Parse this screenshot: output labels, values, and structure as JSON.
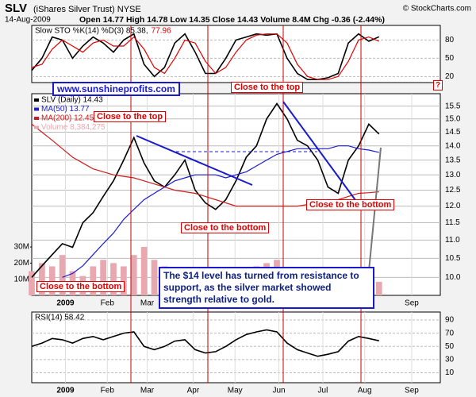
{
  "header": {
    "symbol": "SLV",
    "name": "(iShares Silver Trust) NYSE",
    "date": "14-Aug-2009",
    "quote": "Open 14.77 High 14.78 Low 14.35 Close 14.43 Volume 8.4M Chg -0.36 (-2.44%)",
    "source": "© StockCharts.com",
    "help": "?"
  },
  "annotations": {
    "website": "www.sunshineprofits.com",
    "top": "Close to the top",
    "bottom": "Close to the bottom",
    "note": "The $14 level has turned from resistance to support, as the silver market showed strength relative to gold."
  },
  "chart_data": [
    {
      "type": "line",
      "title": "Slow STO %K(14) %D(3) 85.38,",
      "title_extra": "77.96",
      "x": [
        0,
        1,
        2,
        3,
        4,
        5,
        6,
        7,
        8,
        9,
        10,
        11,
        12,
        13,
        14,
        15,
        16,
        17,
        18,
        19,
        20,
        21,
        22,
        23,
        24,
        25,
        26,
        27,
        28,
        29,
        30,
        31,
        32,
        33,
        34
      ],
      "xlim": [
        0,
        40
      ],
      "ylim": [
        10,
        104
      ],
      "yticks": [
        20,
        50,
        80
      ],
      "grid": true,
      "series": [
        {
          "color": "#000000",
          "values": [
            30,
            50,
            85,
            80,
            50,
            70,
            85,
            75,
            60,
            80,
            90,
            40,
            20,
            35,
            75,
            90,
            60,
            25,
            25,
            50,
            80,
            85,
            90,
            88,
            90,
            50,
            25,
            15,
            15,
            18,
            25,
            75,
            90,
            78,
            85.38
          ]
        },
        {
          "color": "#dd0000",
          "values": [
            35,
            40,
            65,
            80,
            70,
            60,
            75,
            80,
            70,
            70,
            85,
            65,
            35,
            25,
            50,
            80,
            75,
            45,
            25,
            35,
            60,
            80,
            88,
            90,
            90,
            75,
            40,
            20,
            15,
            15,
            20,
            45,
            80,
            85,
            77.96
          ]
        }
      ]
    },
    {
      "type": "line",
      "log": true,
      "x": [
        0,
        1,
        2,
        3,
        4,
        5,
        6,
        7,
        8,
        9,
        10,
        11,
        12,
        13,
        14,
        15,
        16,
        17,
        18,
        19,
        20,
        21,
        22,
        23,
        24,
        25,
        26,
        27,
        28,
        29,
        30,
        31,
        32,
        33,
        34
      ],
      "xlim": [
        0,
        40
      ],
      "ylim": [
        9.55,
        16
      ],
      "yticks": [
        {
          "value": 10,
          "label": "10.0"
        },
        10.5,
        {
          "value": 11,
          "label": "11.0"
        },
        11.5,
        {
          "value": 12,
          "label": "12.0"
        },
        12.5,
        {
          "value": 13,
          "label": "13.0"
        },
        13.5,
        {
          "value": 14,
          "label": "14.0"
        },
        14.5,
        {
          "value": 15,
          "label": "15.0"
        },
        15.5
      ],
      "y2lim": [
        0,
        125000000
      ],
      "y2ticks": [
        {
          "value": 10000000,
          "label": "10M"
        },
        {
          "value": 20000000,
          "label": "20M"
        },
        {
          "value": 30000000,
          "label": "30M"
        }
      ],
      "xticks": [
        {
          "value": 3.3,
          "label": "2009"
        },
        {
          "value": 7.4,
          "label": "Feb"
        },
        {
          "value": 11.3,
          "label": "Mar"
        },
        {
          "value": 15.8,
          "label": "Apr"
        },
        {
          "value": 19.9,
          "label": "May"
        },
        {
          "value": 24.2,
          "label": "Jun"
        },
        {
          "value": 28.5,
          "label": "Jul"
        },
        {
          "value": 32.6,
          "label": "Aug"
        },
        {
          "value": 37.2,
          "label": "Sep"
        }
      ],
      "grid": true,
      "series": [
        {
          "name": "SLV (Daily) 14.43",
          "color": "#000000",
          "values": [
            10.0,
            10.3,
            10.6,
            10.9,
            10.8,
            11.5,
            11.8,
            12.3,
            12.8,
            13.5,
            14.3,
            13.4,
            12.8,
            12.6,
            13.0,
            13.5,
            12.5,
            12.1,
            11.9,
            12.2,
            12.8,
            13.6,
            14.0,
            15.0,
            15.6,
            15.0,
            14.2,
            14.0,
            13.5,
            12.6,
            12.4,
            13.5,
            14.0,
            14.8,
            14.43
          ]
        },
        {
          "name": "MA(50) 13.77",
          "color": "#1c1cd0",
          "values": [
            null,
            null,
            null,
            10.0,
            10.1,
            10.3,
            10.6,
            10.9,
            11.2,
            11.6,
            11.9,
            12.2,
            12.4,
            12.6,
            12.8,
            12.9,
            13.0,
            13.0,
            13.0,
            12.9,
            13.0,
            13.1,
            13.3,
            13.5,
            13.7,
            13.8,
            13.9,
            13.9,
            13.9,
            13.9,
            14.0,
            14.0,
            13.9,
            13.85,
            13.77
          ]
        },
        {
          "name": "MA(200) 12.45",
          "color": "#d01c1c",
          "values": [
            14.8,
            14.5,
            14.2,
            13.9,
            13.6,
            13.4,
            13.2,
            13.1,
            13.0,
            12.95,
            12.9,
            12.8,
            12.7,
            12.6,
            12.5,
            12.45,
            12.4,
            12.3,
            12.2,
            12.1,
            12.0,
            12.0,
            12.0,
            12.0,
            12.0,
            12.0,
            12.0,
            12.05,
            12.1,
            12.15,
            12.2,
            12.3,
            12.4,
            12.42,
            12.45
          ]
        },
        {
          "name": "Volume 8,384,275",
          "color": "#e8a8b0",
          "axis": "y2",
          "values": [
            15000000,
            20000000,
            18000000,
            25000000,
            15000000,
            12000000,
            18000000,
            22000000,
            20000000,
            18000000,
            25000000,
            30000000,
            22000000,
            18000000,
            12000000,
            15000000,
            10000000,
            12000000,
            14000000,
            10000000,
            12000000,
            15000000,
            18000000,
            20000000,
            22000000,
            12000000,
            10000000,
            12000000,
            10000000,
            14000000,
            12000000,
            10000000,
            10000000,
            12000000,
            8384275
          ]
        }
      ]
    },
    {
      "type": "line",
      "title": "RSI(14) 58.42",
      "x": [
        0,
        1,
        2,
        3,
        4,
        5,
        6,
        7,
        8,
        9,
        10,
        11,
        12,
        13,
        14,
        15,
        16,
        17,
        18,
        19,
        20,
        21,
        22,
        23,
        24,
        25,
        26,
        27,
        28,
        29,
        30,
        31,
        32,
        33,
        34
      ],
      "xlim": [
        0,
        40
      ],
      "ylim": [
        -5,
        102
      ],
      "yticks": [
        10,
        30,
        50,
        70,
        90
      ],
      "xticks": [
        {
          "value": 3.3,
          "label": "2009"
        },
        {
          "value": 7.4,
          "label": "Feb"
        },
        {
          "value": 11.3,
          "label": "Mar"
        },
        {
          "value": 15.8,
          "label": "Apr"
        },
        {
          "value": 19.9,
          "label": "May"
        },
        {
          "value": 24.2,
          "label": "Jun"
        },
        {
          "value": 28.5,
          "label": "Jul"
        },
        {
          "value": 32.6,
          "label": "Aug"
        },
        {
          "value": 37.2,
          "label": "Sep"
        }
      ],
      "grid": true,
      "series": [
        {
          "color": "#000000",
          "values": [
            50,
            55,
            62,
            60,
            55,
            62,
            65,
            60,
            65,
            70,
            72,
            50,
            45,
            50,
            58,
            60,
            45,
            40,
            42,
            50,
            60,
            68,
            72,
            75,
            72,
            55,
            45,
            40,
            35,
            38,
            42,
            58,
            65,
            62,
            58.42
          ]
        }
      ]
    }
  ]
}
